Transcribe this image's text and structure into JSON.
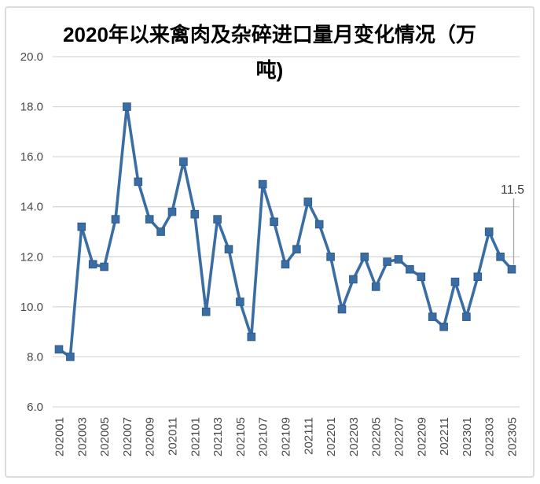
{
  "chart_data": {
    "type": "line",
    "title": "2020年以来禽肉及杂碎进口量月变化情况（万吨)",
    "x": [
      "202001",
      "202002",
      "202003",
      "202004",
      "202005",
      "202006",
      "202007",
      "202008",
      "202009",
      "202010",
      "202011",
      "202012",
      "202101",
      "202102",
      "202103",
      "202104",
      "202105",
      "202106",
      "202107",
      "202108",
      "202109",
      "202110",
      "202111",
      "202112",
      "202201",
      "202202",
      "202203",
      "202204",
      "202205",
      "202206",
      "202207",
      "202208",
      "202209",
      "202210",
      "202211",
      "202212",
      "202301",
      "202302",
      "202303",
      "202304",
      "202305"
    ],
    "values": [
      8.3,
      8.0,
      13.2,
      11.7,
      11.6,
      13.5,
      18.0,
      15.0,
      13.5,
      13.0,
      13.8,
      15.8,
      13.7,
      9.8,
      13.5,
      12.3,
      10.2,
      8.8,
      14.9,
      13.4,
      11.7,
      12.3,
      14.2,
      13.3,
      12.0,
      9.9,
      11.1,
      12.0,
      10.8,
      11.8,
      11.9,
      11.5,
      11.2,
      9.6,
      9.2,
      11.0,
      9.6,
      11.2,
      13.0,
      12.0,
      11.5
    ],
    "x_tick_labels": [
      "202001",
      "202003",
      "202005",
      "202007",
      "202009",
      "202011",
      "202101",
      "202103",
      "202105",
      "202107",
      "202109",
      "202111",
      "202201",
      "202203",
      "202205",
      "202207",
      "202209",
      "202211",
      "202301",
      "202303",
      "202305"
    ],
    "y_tick_labels": [
      "20.0",
      "18.0",
      "16.0",
      "14.0",
      "12.0",
      "10.0",
      "8.0",
      "6.0"
    ],
    "ylim": [
      6,
      20
    ],
    "y_tick_step": 2,
    "grid": "horizontal",
    "legend": "none",
    "marker": "square",
    "end_label": "11.5",
    "xlabel": "",
    "ylabel": "",
    "colors": {
      "line": "#3b6da5",
      "marker_fill": "#3b6da5",
      "marker_edge": "#2e5a8c",
      "gridline": "#d9d9d9",
      "axis_text": "#494949",
      "title_text": "#000000",
      "data_label_text": "#3a3a3a",
      "leader_line": "#a8a8a8",
      "frame_border": "#dcdcdc",
      "background": "#ffffff"
    }
  }
}
